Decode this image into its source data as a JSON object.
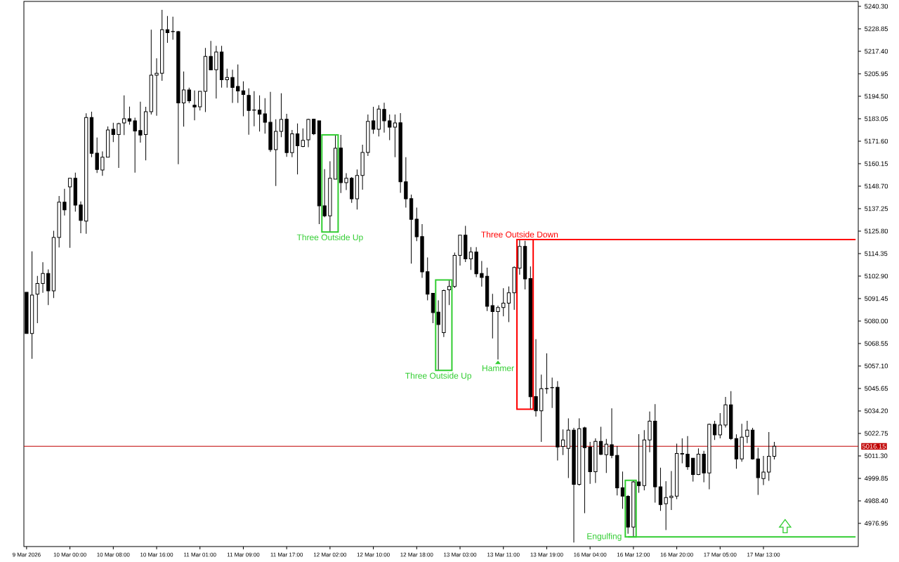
{
  "chart_data": {
    "type": "candlestick",
    "categories": [
      "9 Mar 2026",
      null,
      null,
      null,
      null,
      null,
      null,
      null,
      "10 Mar 00:00",
      null,
      null,
      null,
      null,
      null,
      null,
      null,
      "10 Mar 08:00",
      null,
      null,
      null,
      null,
      null,
      null,
      null,
      "10 Mar 16:00",
      null,
      null,
      null,
      null,
      null,
      null,
      null,
      "11 Mar 01:00",
      null,
      null,
      null,
      null,
      null,
      null,
      null,
      "11 Mar 09:00",
      null,
      null,
      null,
      null,
      null,
      null,
      null,
      "11 Mar 17:00",
      null,
      null,
      null,
      null,
      null,
      null,
      null,
      "12 Mar 02:00",
      null,
      null,
      null,
      null,
      null,
      null,
      null,
      "12 Mar 10:00",
      null,
      null,
      null,
      null,
      null,
      null,
      null,
      "12 Mar 18:00",
      null,
      null,
      null,
      null,
      null,
      null,
      null,
      "13 Mar 03:00",
      null,
      null,
      null,
      null,
      null,
      null,
      null,
      "13 Mar 11:00",
      null,
      null,
      null,
      null,
      null,
      null,
      null,
      "13 Mar 19:00",
      null,
      null,
      null,
      null,
      null,
      null,
      null,
      "16 Mar 04:00",
      null,
      null,
      null,
      null,
      null,
      null,
      null,
      "16 Mar 12:00",
      null,
      null,
      null,
      null,
      null,
      null,
      null,
      "16 Mar 20:00",
      null,
      null,
      null,
      null,
      null,
      null,
      null,
      "17 Mar 05:00",
      null,
      null,
      null,
      null,
      null,
      null,
      null,
      "17 Mar 13:00",
      null,
      null,
      null,
      null,
      null,
      null,
      null,
      null,
      null,
      null,
      null,
      null,
      null,
      null,
      null,
      null,
      null
    ],
    "ohlc": [
      [
        5094.6,
        5094.6,
        5073.6,
        5073.6
      ],
      [
        5073.6,
        5115.5,
        5060.7,
        5093.2
      ],
      [
        5093.7,
        5103.0,
        5078.9,
        5099.1
      ],
      [
        5099.1,
        5109.9,
        5094.4,
        5104.2
      ],
      [
        5104.2,
        5106.3,
        5088.1,
        5095.4
      ],
      [
        5095.4,
        5126.0,
        5091.7,
        5122.6
      ],
      [
        5122.6,
        5143.7,
        5117.5,
        5140.5
      ],
      [
        5140.5,
        5147.3,
        5133.7,
        5136.6
      ],
      [
        5148.3,
        5152.7,
        5117.3,
        5152.7
      ],
      [
        5152.7,
        5155.6,
        5135.7,
        5139.0
      ],
      [
        5139.1,
        5140.9,
        5124.7,
        5131.2
      ],
      [
        5130.9,
        5185.8,
        5124.4,
        5183.7
      ],
      [
        5183.7,
        5186.6,
        5163.4,
        5165.4
      ],
      [
        5165.5,
        5173.5,
        5155.4,
        5157.2
      ],
      [
        5156.9,
        5166.4,
        5154.0,
        5163.4
      ],
      [
        5163.4,
        5179.1,
        5163.4,
        5177.3
      ],
      [
        5177.7,
        5181.0,
        5171.1,
        5175.0
      ],
      [
        5175.0,
        5181.0,
        5158.0,
        5180.5
      ],
      [
        5180.9,
        5194.9,
        5174.7,
        5183.0
      ],
      [
        5183.0,
        5189.2,
        5180.0,
        5181.8
      ],
      [
        5182.0,
        5183.6,
        5155.6,
        5176.8
      ],
      [
        5177.0,
        5191.7,
        5170.9,
        5174.7
      ],
      [
        5175.0,
        5189.1,
        5161.8,
        5186.6
      ],
      [
        5186.6,
        5228.4,
        5185.2,
        5205.2
      ],
      [
        5205.2,
        5213.8,
        5184.6,
        5206.2
      ],
      [
        5206.2,
        5238.5,
        5202.4,
        5228.4
      ],
      [
        5228.4,
        5235.4,
        5221.7,
        5226.9
      ],
      [
        5227.5,
        5235.0,
        5223.3,
        5227.4
      ],
      [
        5227.4,
        5227.8,
        5159.9,
        5191.1
      ],
      [
        5191.1,
        5207.1,
        5179.0,
        5197.7
      ],
      [
        5197.7,
        5198.9,
        5191.0,
        5192.2
      ],
      [
        5189.9,
        5197.4,
        5182.2,
        5189.0
      ],
      [
        5189.1,
        5197.0,
        5187.2,
        5197.0
      ],
      [
        5197.0,
        5219.1,
        5186.4,
        5214.8
      ],
      [
        5214.8,
        5222.7,
        5207.9,
        5207.9
      ],
      [
        5208.0,
        5220.2,
        5193.3,
        5217.0
      ],
      [
        5217.0,
        5220.2,
        5198.9,
        5202.9
      ],
      [
        5202.9,
        5208.5,
        5198.9,
        5204.1
      ],
      [
        5204.1,
        5208.0,
        5191.1,
        5199.0
      ],
      [
        5199.5,
        5210.7,
        5191.1,
        5197.2
      ],
      [
        5197.3,
        5202.1,
        5184.3,
        5195.4
      ],
      [
        5194.9,
        5198.5,
        5174.9,
        5187.2
      ],
      [
        5187.5,
        5197.1,
        5179.2,
        5187.4
      ],
      [
        5187.4,
        5194.9,
        5176.5,
        5185.4
      ],
      [
        5185.5,
        5193.5,
        5175.4,
        5181.2
      ],
      [
        5181.2,
        5196.7,
        5166.1,
        5167.3
      ],
      [
        5167.3,
        5182.8,
        5148.8,
        5176.6
      ],
      [
        5176.6,
        5196.0,
        5173.6,
        5182.7
      ],
      [
        5182.8,
        5185.5,
        5163.6,
        5165.8
      ],
      [
        5165.8,
        5177.3,
        5163.4,
        5175.3
      ],
      [
        5175.3,
        5180.6,
        5154.7,
        5169.3
      ],
      [
        5168.9,
        5178.1,
        5168.5,
        5172.0
      ],
      [
        5172.3,
        5183.0,
        5168.5,
        5182.7
      ],
      [
        5182.8,
        5183.0,
        5174.7,
        5175.3
      ],
      [
        5182.0,
        5182.0,
        5129.4,
        5138.7
      ],
      [
        5138.7,
        5157.4,
        5132.8,
        5133.6
      ],
      [
        5133.6,
        5161.4,
        5125.3,
        5152.7
      ],
      [
        5152.3,
        5174.8,
        5152.3,
        5168.0
      ],
      [
        5168.1,
        5174.8,
        5145.2,
        5150.5
      ],
      [
        5150.5,
        5155.3,
        5146.7,
        5152.7
      ],
      [
        5152.7,
        5153.3,
        5140.2,
        5142.2
      ],
      [
        5142.2,
        5157.2,
        5136.8,
        5154.1
      ],
      [
        5154.1,
        5169.8,
        5146.9,
        5165.9
      ],
      [
        5165.9,
        5185.2,
        5164.1,
        5181.7
      ],
      [
        5182.0,
        5189.1,
        5175.3,
        5177.7
      ],
      [
        5177.7,
        5189.9,
        5174.0,
        5188.0
      ],
      [
        5187.8,
        5191.2,
        5176.0,
        5182.0
      ],
      [
        5182.0,
        5185.2,
        5172.1,
        5178.7
      ],
      [
        5178.7,
        5185.2,
        5163.4,
        5180.9
      ],
      [
        5181.0,
        5185.9,
        5145.3,
        5150.9
      ],
      [
        5150.9,
        5163.4,
        5137.8,
        5142.2
      ],
      [
        5142.3,
        5144.4,
        5109.2,
        5131.8
      ],
      [
        5131.9,
        5137.8,
        5120.7,
        5122.9
      ],
      [
        5123.0,
        5129.4,
        5102.0,
        5105.0
      ],
      [
        5105.1,
        5112.4,
        5090.5,
        5093.7
      ],
      [
        5094.1,
        5094.1,
        5078.9,
        5084.3
      ],
      [
        5084.5,
        5090.5,
        5054.8,
        5078.2
      ],
      [
        5074.1,
        5096.0,
        5071.8,
        5095.5
      ],
      [
        5095.9,
        5100.9,
        5088.1,
        5097.6
      ],
      [
        5097.6,
        5114.9,
        5096.8,
        5113.4
      ],
      [
        5113.4,
        5123.7,
        5108.2,
        5123.7
      ],
      [
        5123.7,
        5128.5,
        5110.0,
        5111.6
      ],
      [
        5111.6,
        5117.6,
        5106.0,
        5115.1
      ],
      [
        5115.1,
        5117.6,
        5102.3,
        5104.0
      ],
      [
        5104.2,
        5110.6,
        5097.5,
        5102.2
      ],
      [
        5102.8,
        5107.2,
        5085.1,
        5087.5
      ],
      [
        5087.8,
        5093.8,
        5071.1,
        5084.8
      ],
      [
        5084.8,
        5087.8,
        5060.4,
        5086.9
      ],
      [
        5086.9,
        5096.7,
        5082.4,
        5089.1
      ],
      [
        5089.1,
        5097.6,
        5079.4,
        5094.4
      ],
      [
        5094.4,
        5107.8,
        5085.7,
        5107.3
      ],
      [
        5106.9,
        5121.5,
        5103.6,
        5118.0
      ],
      [
        5118.0,
        5120.9,
        5096.1,
        5101.4
      ],
      [
        5101.6,
        5107.8,
        5035.1,
        5041.4
      ],
      [
        5041.5,
        5070.8,
        5031.3,
        5034.3
      ],
      [
        5034.3,
        5052.7,
        5018.4,
        5045.5
      ],
      [
        5045.6,
        5063.5,
        5042.9,
        5045.5
      ],
      [
        5046.1,
        5051.2,
        5035.7,
        5046.0
      ],
      [
        5046.2,
        5049.4,
        5008.9,
        5015.8
      ],
      [
        5016.1,
        5024.8,
        5011.7,
        5019.4
      ],
      [
        5015.1,
        5030.4,
        5000.0,
        5024.4
      ],
      [
        5024.4,
        5025.6,
        4967.2,
        4996.8
      ],
      [
        4996.8,
        5030.4,
        4996.1,
        5025.1
      ],
      [
        5025.6,
        5026.1,
        4982.1,
        5015.5
      ],
      [
        5015.7,
        5018.4,
        4997.0,
        5003.2
      ],
      [
        5003.2,
        5020.2,
        4997.5,
        5018.7
      ],
      [
        5018.7,
        5026.1,
        5011.7,
        5012.1
      ],
      [
        5011.9,
        5019.9,
        5002.6,
        5017.3
      ],
      [
        5017.0,
        5035.5,
        5010.1,
        5011.5
      ],
      [
        5011.5,
        5016.3,
        4991.1,
        4995.0
      ],
      [
        4995.1,
        5003.3,
        4984.3,
        4990.8
      ],
      [
        4990.7,
        4991.3,
        4971.6,
        4975.0
      ],
      [
        4975.0,
        4998.8,
        4970.0,
        4998.0
      ],
      [
        4998.0,
        5022.4,
        4992.5,
        4996.1
      ],
      [
        4996.1,
        5024.4,
        4993.7,
        5019.4
      ],
      [
        5019.4,
        5033.9,
        5013.1,
        5029.0
      ],
      [
        5029.0,
        5037.7,
        4987.5,
        4995.5
      ],
      [
        4995.5,
        5005.3,
        4983.3,
        4986.5
      ],
      [
        4986.9,
        4998.4,
        4973.5,
        4990.1
      ],
      [
        4990.1,
        5003.6,
        4983.7,
        4990.8
      ],
      [
        4990.8,
        5017.5,
        4989.3,
        5012.5
      ],
      [
        5012.2,
        5020.2,
        5007.5,
        5012.5
      ],
      [
        5012.2,
        5021.4,
        5004.2,
        5005.7
      ],
      [
        5010.1,
        5010.1,
        4998.2,
        5001.8
      ],
      [
        5001.8,
        5015.1,
        5001.5,
        5012.2
      ],
      [
        5012.2,
        5013.9,
        4997.8,
        5002.6
      ],
      [
        5002.6,
        5027.7,
        4994.3,
        5027.4
      ],
      [
        5027.4,
        5029.2,
        5019.4,
        5022.0
      ],
      [
        5022.0,
        5033.1,
        5020.2,
        5027.0
      ],
      [
        5027.0,
        5041.3,
        5025.8,
        5037.3
      ],
      [
        5037.3,
        5044.3,
        5019.4,
        5020.1
      ],
      [
        5020.1,
        5022.3,
        5004.7,
        5009.7
      ],
      [
        5009.7,
        5027.6,
        5008.3,
        5020.8
      ],
      [
        5021.2,
        5029.2,
        5017.8,
        5024.4
      ],
      [
        5024.4,
        5025.6,
        5009.4,
        5009.7
      ],
      [
        5009.7,
        5015.5,
        4991.4,
        5000.2
      ],
      [
        4999.7,
        5011.3,
        4996.4,
        5003.0
      ],
      [
        5003.0,
        5023.4,
        4998.6,
        5011.1
      ],
      [
        5011.1,
        5018.4,
        5009.5,
        5016.2
      ],
      null,
      null,
      null,
      null,
      null,
      null,
      null,
      null,
      null,
      null,
      null,
      null,
      null,
      null,
      null
    ],
    "series": [
      {
        "type": "line",
        "color": "#ff0000",
        "values": [
          null,
          null,
          null,
          null,
          null,
          null,
          null,
          null,
          null,
          null,
          null,
          null,
          null,
          null,
          null,
          null,
          null,
          null,
          null,
          null,
          null,
          null,
          null,
          null,
          null,
          null,
          null,
          null,
          null,
          null,
          null,
          null,
          null,
          null,
          null,
          null,
          null,
          null,
          null,
          null,
          null,
          null,
          null,
          null,
          null,
          null,
          null,
          null,
          null,
          null,
          null,
          null,
          null,
          null,
          null,
          null,
          null,
          null,
          null,
          null,
          null,
          null,
          null,
          null,
          null,
          null,
          null,
          null,
          null,
          null,
          null,
          null,
          null,
          null,
          null,
          null,
          null,
          null,
          null,
          null,
          null,
          null,
          null,
          null,
          null,
          null,
          null,
          null,
          null,
          null,
          null,
          5121.5,
          5121.5,
          5121.5,
          5121.5,
          5121.5,
          5121.5,
          5121.5,
          5121.5,
          5121.5,
          5121.5,
          5121.5,
          5121.5,
          5121.5,
          5121.5,
          5121.5,
          5121.5,
          5121.5,
          5121.5,
          5121.5,
          5121.5,
          5121.5,
          5121.5,
          5121.5,
          5121.5,
          5121.5,
          5121.5,
          5121.5,
          5121.5,
          5121.5,
          5121.5,
          5121.5,
          5121.5,
          5121.5,
          5121.5,
          5121.5,
          5121.5,
          5121.5,
          5121.5,
          5121.5,
          5121.5,
          5121.5,
          5121.5,
          5121.5,
          5121.5,
          5121.5,
          5121.5,
          5121.5,
          5121.5,
          5121.5,
          5121.5,
          5121.5,
          5121.5,
          5121.5,
          5121.5,
          5121.5,
          5121.5,
          5121.5,
          5121.5,
          5121.5,
          5121.5,
          5121.5,
          5121.5,
          5121.5
        ]
      },
      {
        "type": "line",
        "color": "#32cd32",
        "values": [
          null,
          null,
          null,
          null,
          null,
          null,
          null,
          null,
          null,
          null,
          null,
          null,
          null,
          null,
          null,
          null,
          null,
          null,
          null,
          null,
          null,
          null,
          null,
          null,
          null,
          null,
          null,
          null,
          null,
          null,
          null,
          null,
          null,
          null,
          null,
          null,
          null,
          null,
          null,
          null,
          null,
          null,
          null,
          null,
          null,
          null,
          null,
          null,
          null,
          null,
          null,
          null,
          null,
          null,
          null,
          null,
          null,
          null,
          null,
          null,
          null,
          null,
          null,
          null,
          null,
          null,
          null,
          null,
          null,
          null,
          null,
          null,
          null,
          null,
          null,
          null,
          null,
          null,
          null,
          null,
          null,
          null,
          null,
          null,
          null,
          null,
          null,
          null,
          null,
          null,
          null,
          null,
          null,
          null,
          null,
          null,
          null,
          null,
          null,
          null,
          null,
          null,
          null,
          null,
          null,
          null,
          null,
          null,
          null,
          null,
          null,
          4970.0,
          4970.0,
          4970.0,
          4970.0,
          4970.0,
          4970.0,
          4970.0,
          4970.0,
          4970.0,
          4970.0,
          4970.0,
          4970.0,
          4970.0,
          4970.0,
          4970.0,
          4970.0,
          4970.0,
          4970.0,
          4970.0,
          4970.0,
          4970.0,
          4970.0,
          4970.0,
          4970.0,
          4970.0,
          4970.0,
          4970.0,
          4970.0,
          4970.0,
          4970.0,
          4970.0,
          4970.0,
          4970.0,
          4970.0,
          4970.0,
          4970.0,
          4970.0,
          4970.0,
          4970.0,
          4970.0,
          4970.0,
          4970.0,
          4970.0
        ]
      }
    ],
    "ylim": [
      4965.1,
      5242.8
    ],
    "yticks": [
      {
        "value": 5240.3,
        "label": "5240.30"
      },
      {
        "value": 5228.85,
        "label": "5228.85"
      },
      {
        "value": 5217.4,
        "label": "5217.40"
      },
      {
        "value": 5205.95,
        "label": "5205.95"
      },
      {
        "value": 5194.5,
        "label": "5194.50"
      },
      {
        "value": 5183.05,
        "label": "5183.05"
      },
      {
        "value": 5171.6,
        "label": "5171.60"
      },
      {
        "value": 5160.15,
        "label": "5160.15"
      },
      {
        "value": 5148.7,
        "label": "5148.70"
      },
      {
        "value": 5137.25,
        "label": "5137.25"
      },
      {
        "value": 5125.8,
        "label": "5125.80"
      },
      {
        "value": 5114.35,
        "label": "5114.35"
      },
      {
        "value": 5102.9,
        "label": "5102.90"
      },
      {
        "value": 5091.45,
        "label": "5091.45"
      },
      {
        "value": 5080.0,
        "label": "5080.00"
      },
      {
        "value": 5068.55,
        "label": "5068.55"
      },
      {
        "value": 5057.1,
        "label": "5057.10"
      },
      {
        "value": 5045.65,
        "label": "5045.65"
      },
      {
        "value": 5034.2,
        "label": "5034.20"
      },
      {
        "value": 5022.75,
        "label": "5022.75"
      },
      {
        "value": 5011.3,
        "label": "5011.30"
      },
      {
        "value": 4999.85,
        "label": "4999.85"
      },
      {
        "value": 4988.4,
        "label": "4988.40"
      },
      {
        "value": 4976.95,
        "label": "4976.95"
      }
    ],
    "ref_lines": [
      {
        "axis": "y",
        "value": 5016.15,
        "label": "5016.15",
        "color": "#c00000"
      }
    ],
    "annotations": [
      {
        "text": "Three Outside Up",
        "y": 5125.3
      },
      {
        "text": "Three Outside Up",
        "y": 5054.8
      },
      {
        "text": "Hammer",
        "y": 5060.4
      },
      {
        "text": "Three Outside Down",
        "y": 5121.5
      },
      "Engulfing"
    ]
  }
}
